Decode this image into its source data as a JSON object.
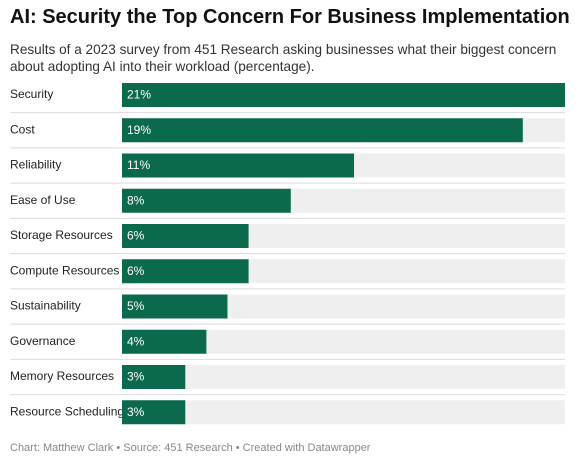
{
  "chart_data": {
    "type": "bar",
    "title": "AI: Security the Top Concern For Business Implementation",
    "subtitle": "Results of a 2023 survey from 451 Research asking businesses what their biggest concern about adopting AI into their workload (percentage).",
    "footer": "Chart: Matthew Clark • Source: 451 Research • Created with Datawrapper",
    "categories": [
      "Security",
      "Cost",
      "Reliability",
      "Ease of Use",
      "Storage Resources",
      "Compute Resources",
      "Sustainability",
      "Governance",
      "Memory Resources",
      "Resource Scheduling"
    ],
    "values": [
      21,
      19,
      11,
      8,
      6,
      6,
      5,
      4,
      3,
      3
    ],
    "value_labels": [
      "21%",
      "19%",
      "11%",
      "8%",
      "6%",
      "6%",
      "5%",
      "4%",
      "3%",
      "3%"
    ],
    "color": "#0b6a4d",
    "xlim": [
      0,
      21
    ]
  }
}
